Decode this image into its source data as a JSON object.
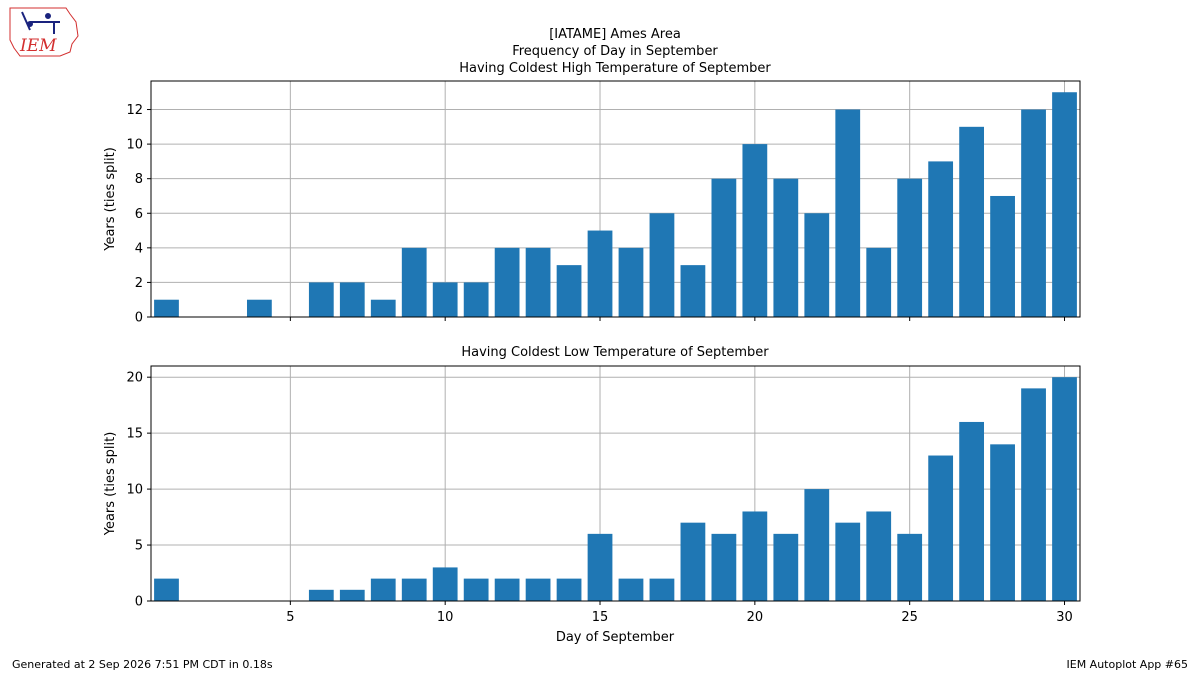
{
  "title_lines": [
    "[IATAME] Ames Area",
    "Frequency of Day in September",
    "Having Coldest High Temperature of September"
  ],
  "logo_text": "IEM",
  "footer": {
    "left": "Generated at 2 Sep 2026 7:51 PM CDT in 0.18s",
    "right": "IEM Autoplot App #65"
  },
  "colors": {
    "bar": "#1f77b4",
    "grid": "#b0b0b0",
    "logo_red": "#d32f2f",
    "logo_blue": "#1a237e"
  },
  "chart_data": [
    {
      "type": "bar",
      "title": "Having Coldest High Temperature of September",
      "ylabel": "Years (ties split)",
      "xlabel": "",
      "x": [
        1,
        2,
        3,
        4,
        5,
        6,
        7,
        8,
        9,
        10,
        11,
        12,
        13,
        14,
        15,
        16,
        17,
        18,
        19,
        20,
        21,
        22,
        23,
        24,
        25,
        26,
        27,
        28,
        29,
        30
      ],
      "values": [
        1,
        0,
        0,
        1,
        0,
        2,
        2,
        1,
        4,
        2,
        2,
        4,
        4,
        3,
        5,
        4,
        6,
        3,
        8,
        10,
        8,
        6,
        12,
        4,
        8,
        9,
        11,
        7,
        12,
        13
      ],
      "xlim": [
        0.5,
        30.5
      ],
      "ylim": [
        0,
        13.65
      ],
      "xticks": [
        5,
        10,
        15,
        20,
        25,
        30
      ],
      "yticks": [
        0,
        2,
        4,
        6,
        8,
        10,
        12
      ],
      "grid": true
    },
    {
      "type": "bar",
      "title": "Having Coldest Low Temperature of September",
      "ylabel": "Years (ties split)",
      "xlabel": "Day of September",
      "x": [
        1,
        2,
        3,
        4,
        5,
        6,
        7,
        8,
        9,
        10,
        11,
        12,
        13,
        14,
        15,
        16,
        17,
        18,
        19,
        20,
        21,
        22,
        23,
        24,
        25,
        26,
        27,
        28,
        29,
        30
      ],
      "values": [
        2,
        0,
        0,
        0,
        0,
        1,
        1,
        2,
        2,
        3,
        2,
        2,
        2,
        2,
        6,
        2,
        2,
        7,
        6,
        8,
        6,
        10,
        7,
        8,
        6,
        13,
        16,
        14,
        19,
        20
      ],
      "xlim": [
        0.5,
        30.5
      ],
      "ylim": [
        0,
        21
      ],
      "xticks": [
        5,
        10,
        15,
        20,
        25,
        30
      ],
      "yticks": [
        0,
        5,
        10,
        15,
        20
      ],
      "grid": true
    }
  ]
}
